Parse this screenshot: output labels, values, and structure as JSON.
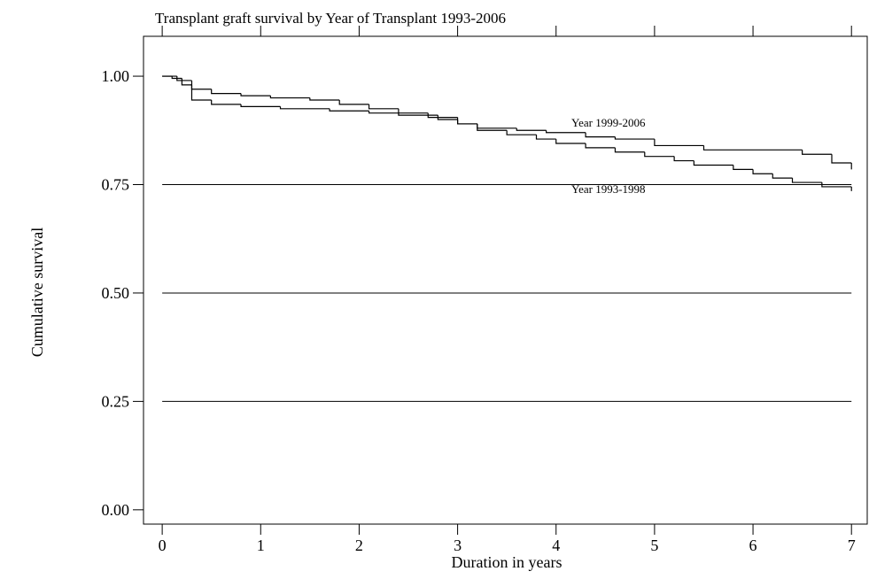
{
  "chart_data": {
    "type": "step",
    "title": "Transplant graft survival by Year of Transplant 1993-2006",
    "xlabel": "Duration in years",
    "ylabel": "Cumulative survival",
    "xlim": [
      -0.19,
      7.16
    ],
    "ylim": [
      -0.033,
      1.092
    ],
    "xticks": [
      0,
      1,
      2,
      3,
      4,
      5,
      6,
      7
    ],
    "yticks": [
      {
        "value": 0,
        "label": "0.00"
      },
      0.25,
      {
        "value": 0.5,
        "label": "0.50"
      },
      0.75,
      {
        "value": 1,
        "label": "1.00"
      }
    ],
    "grid_values": [
      0.25,
      0.5,
      0.75
    ],
    "series": [
      {
        "name": "Year 1999-2006",
        "color": "#000000",
        "x": [
          0,
          0.1,
          0.2,
          0.3,
          0.5,
          0.8,
          1.2,
          1.7,
          2.1,
          2.4,
          2.8,
          3.0,
          3.2,
          3.6,
          3.9,
          4.3,
          4.6,
          5.0,
          5.5,
          6.5,
          6.8,
          7.0
        ],
        "values": [
          1.0,
          0.995,
          0.98,
          0.945,
          0.935,
          0.93,
          0.925,
          0.92,
          0.915,
          0.91,
          0.9,
          0.89,
          0.88,
          0.875,
          0.87,
          0.86,
          0.855,
          0.84,
          0.83,
          0.82,
          0.8,
          0.785
        ]
      },
      {
        "name": "Year 1993-1998",
        "color": "#000000",
        "x": [
          0,
          0.15,
          0.3,
          0.5,
          0.8,
          1.1,
          1.5,
          1.8,
          2.1,
          2.4,
          2.7,
          3.0,
          3.2,
          3.5,
          3.8,
          4.0,
          4.3,
          4.6,
          4.9,
          5.2,
          5.4,
          5.8,
          6.0,
          6.2,
          6.4,
          6.7,
          7.0
        ],
        "values": [
          1.0,
          0.99,
          0.97,
          0.96,
          0.955,
          0.95,
          0.945,
          0.935,
          0.925,
          0.915,
          0.905,
          0.89,
          0.875,
          0.865,
          0.855,
          0.845,
          0.835,
          0.825,
          0.815,
          0.805,
          0.795,
          0.785,
          0.775,
          0.765,
          0.755,
          0.745,
          0.735
        ]
      }
    ]
  }
}
